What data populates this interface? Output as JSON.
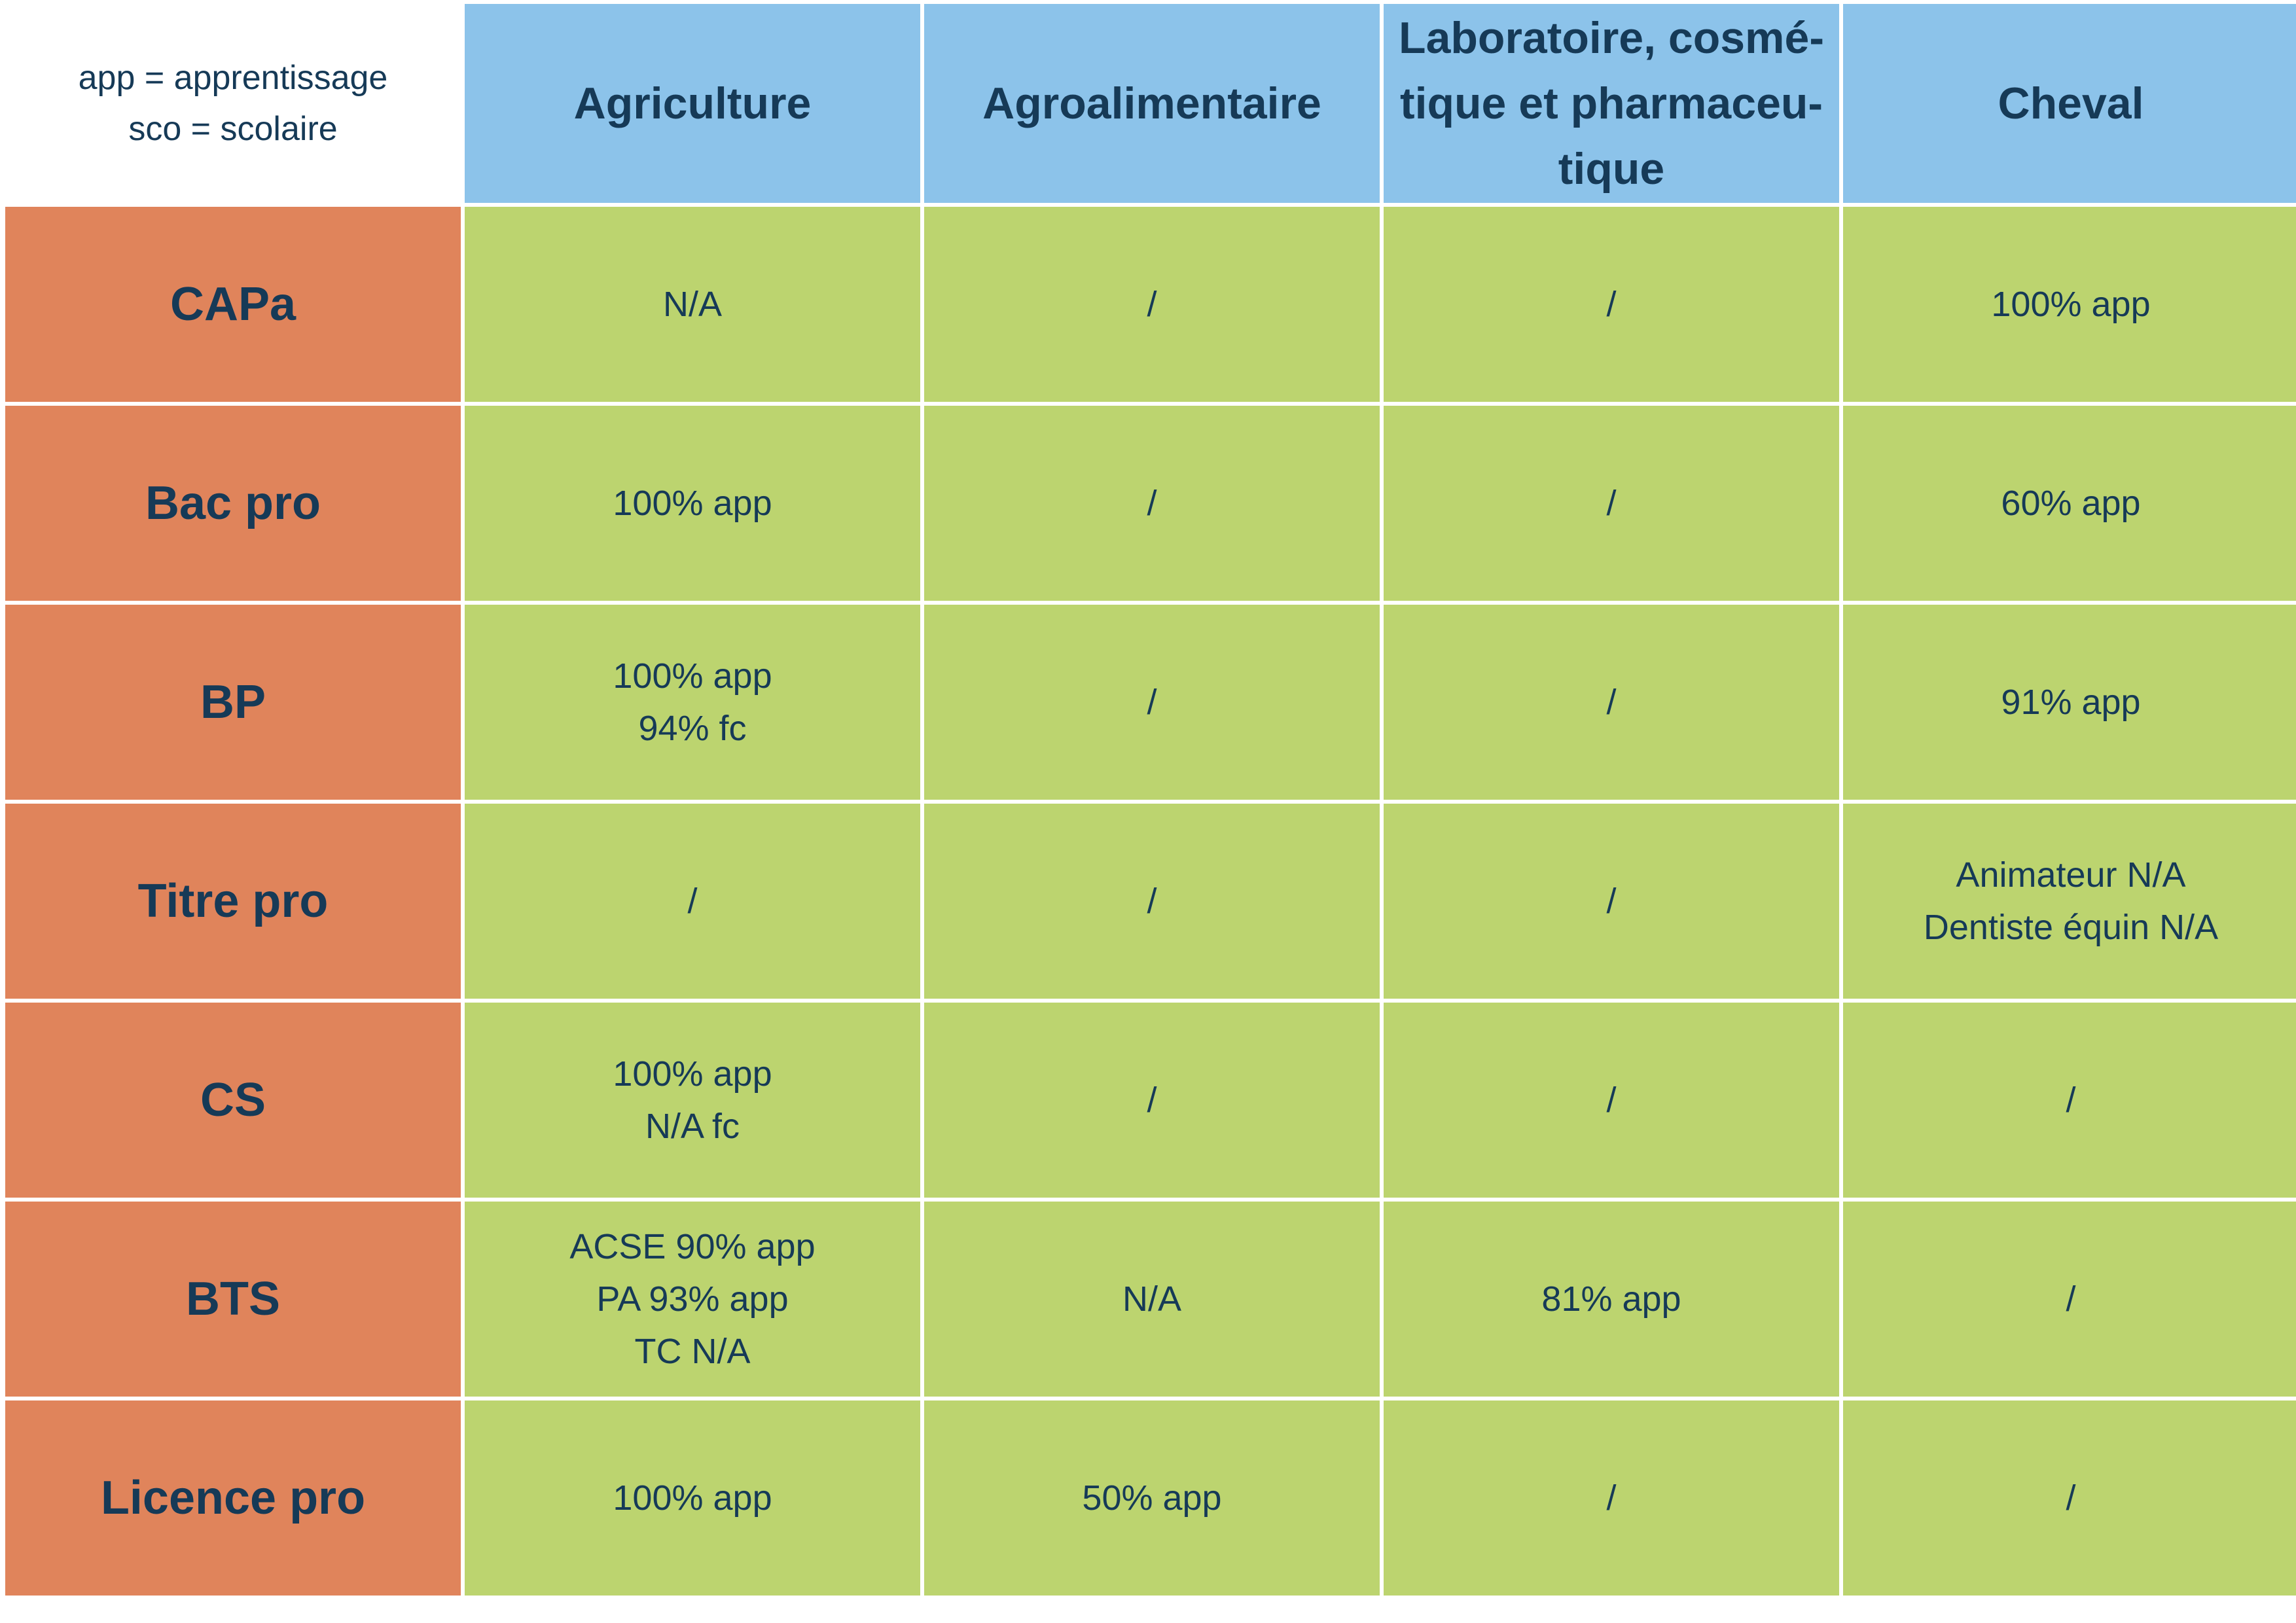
{
  "legend": {
    "line1": "app = apprentissage",
    "line2": "sco = scolaire"
  },
  "columns": [
    "Agriculture",
    "Agroalimentaire",
    "Laboratoire, cosmé-\ntique et pharmaceu-\ntique",
    "Cheval"
  ],
  "rows": [
    {
      "label": "CAPa",
      "cells": [
        [
          "N/A"
        ],
        [
          "/"
        ],
        [
          "/"
        ],
        [
          "100% app"
        ]
      ]
    },
    {
      "label": "Bac pro",
      "cells": [
        [
          "100% app"
        ],
        [
          "/"
        ],
        [
          "/"
        ],
        [
          "60% app"
        ]
      ]
    },
    {
      "label": "BP",
      "cells": [
        [
          "100% app",
          "94% fc"
        ],
        [
          "/"
        ],
        [
          "/"
        ],
        [
          "91% app"
        ]
      ]
    },
    {
      "label": "Titre pro",
      "cells": [
        [
          "/"
        ],
        [
          "/"
        ],
        [
          "/"
        ],
        [
          "Animateur N/A",
          "Dentiste équin N/A"
        ]
      ]
    },
    {
      "label": "CS",
      "cells": [
        [
          "100% app",
          "N/A fc"
        ],
        [
          "/"
        ],
        [
          "/"
        ],
        [
          "/"
        ]
      ]
    },
    {
      "label": "BTS",
      "cells": [
        [
          "ACSE 90% app",
          "PA 93% app",
          "TC N/A"
        ],
        [
          "N/A"
        ],
        [
          "81% app"
        ],
        [
          "/"
        ]
      ]
    },
    {
      "label": "Licence pro",
      "cells": [
        [
          "100% app"
        ],
        [
          "50% app"
        ],
        [
          "/"
        ],
        [
          "/"
        ]
      ]
    }
  ],
  "colors": {
    "header_bg": "#8cc3ea",
    "row_header_bg": "#e0845b",
    "cell_bg": "#bcd46f",
    "text": "#163a57"
  }
}
